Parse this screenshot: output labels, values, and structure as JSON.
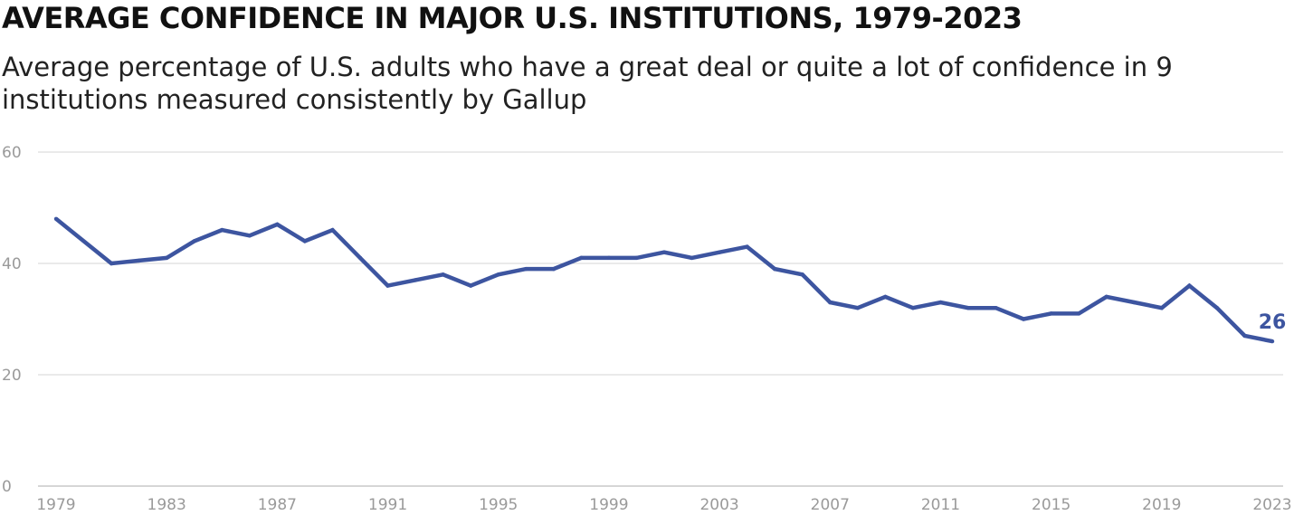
{
  "title": "AVERAGE CONFIDENCE IN MAJOR U.S. INSTITUTIONS, 1979-2023",
  "subtitle": "Average percentage of U.S. adults who have a great deal or quite a lot of confidence in 9 institutions measured consistently by Gallup",
  "colors": {
    "line": "#3d55a0",
    "grid": "#d4d4d4",
    "axis": "#c8c8c8",
    "tick_text": "#9a9a9a"
  },
  "chart_data": {
    "type": "line",
    "title": "AVERAGE CONFIDENCE IN MAJOR U.S. INSTITUTIONS, 1979-2023",
    "xlabel": "",
    "ylabel": "",
    "xlim": [
      1979,
      2023
    ],
    "ylim": [
      0,
      60
    ],
    "grid": true,
    "y_ticks": [
      0,
      20,
      40,
      60
    ],
    "x_ticks": [
      1979,
      1983,
      1987,
      1991,
      1995,
      1999,
      2003,
      2007,
      2011,
      2015,
      2019,
      2023
    ],
    "series": [
      {
        "name": "Average confidence",
        "x": [
          1979,
          1981,
          1982,
          1983,
          1984,
          1985,
          1986,
          1987,
          1988,
          1989,
          1990,
          1991,
          1992,
          1993,
          1994,
          1995,
          1996,
          1997,
          1998,
          1999,
          2000,
          2001,
          2002,
          2003,
          2004,
          2005,
          2006,
          2007,
          2008,
          2009,
          2010,
          2011,
          2012,
          2013,
          2014,
          2015,
          2016,
          2017,
          2018,
          2019,
          2020,
          2021,
          2022,
          2023
        ],
        "values": [
          48,
          40,
          40.5,
          41,
          44,
          46,
          45,
          47,
          44,
          46,
          41,
          36,
          37,
          38,
          36,
          38,
          39,
          39,
          41,
          41,
          41,
          42,
          41,
          42,
          43,
          39,
          38,
          33,
          32,
          34,
          32,
          33,
          32,
          32,
          30,
          31,
          31,
          34,
          33,
          32,
          36,
          32,
          27,
          26
        ]
      }
    ],
    "end_label": "26"
  }
}
